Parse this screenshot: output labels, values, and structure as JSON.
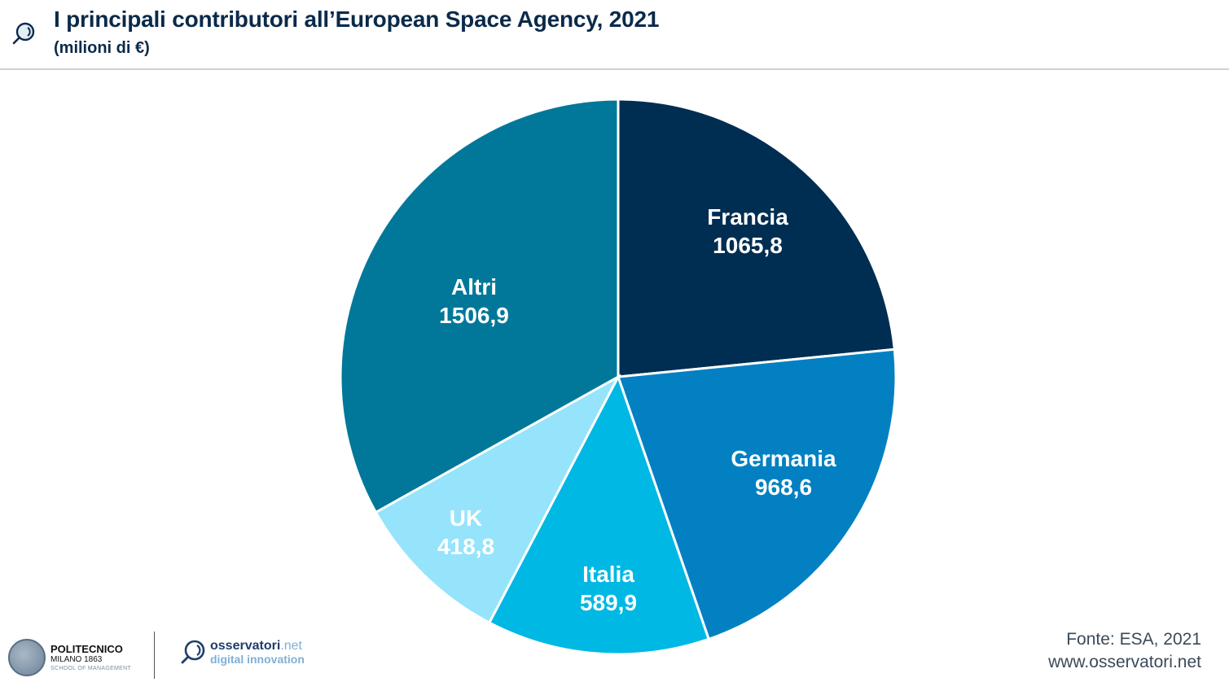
{
  "header": {
    "icon": "magnifier-logo-icon",
    "title": "I principali contributori all’European Space Agency, 2021",
    "subtitle": "(milioni di €)"
  },
  "chart_data": {
    "type": "pie",
    "title": "I principali contributori all’European Space Agency, 2021",
    "subtitle": "(milioni di €)",
    "unit": "milioni di €",
    "start": "12 o'clock, clockwise",
    "slices": [
      {
        "label": "Francia",
        "value": 1065.8,
        "display": "1065,8",
        "color": "#002d52"
      },
      {
        "label": "Germania",
        "value": 968.6,
        "display": "968,6",
        "color": "#0280c2"
      },
      {
        "label": "Italia",
        "value": 589.9,
        "display": "589,9",
        "color": "#00b8e4"
      },
      {
        "label": "UK",
        "value": 418.8,
        "display": "418,8",
        "color": "#95e4fb"
      },
      {
        "label": "Altri",
        "value": 1506.9,
        "display": "1506,9",
        "color": "#017899"
      }
    ],
    "legend": "none (labels inside slices)"
  },
  "footer": {
    "poli_line1": "POLITECNICO",
    "poli_line2": "MILANO 1863",
    "poli_line3": "SCHOOL OF MANAGEMENT",
    "oss_brand": "osservatori",
    "oss_suffix": ".net",
    "oss_tagline": "digital innovation",
    "source": "Fonte: ESA, 2021",
    "website": "www.osservatori.net"
  }
}
